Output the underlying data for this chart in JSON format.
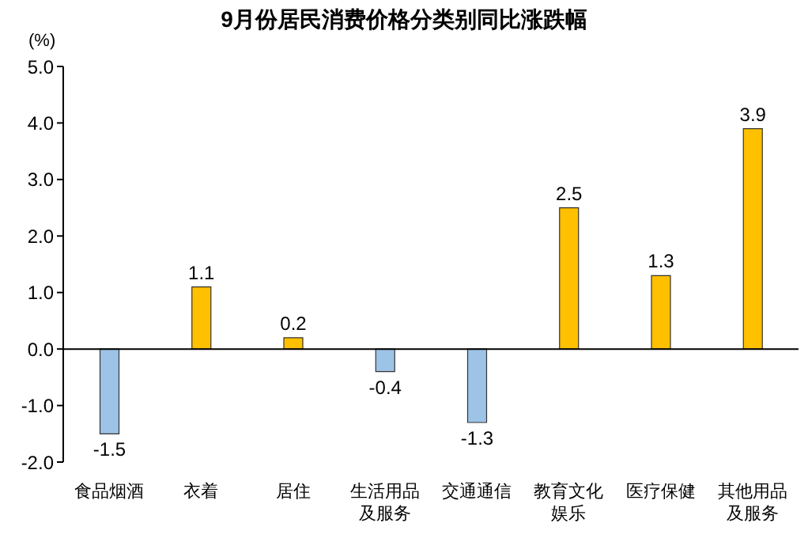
{
  "chart_data": {
    "type": "bar",
    "title": "9月份居民消费价格分类别同比涨跌幅",
    "ylabel": "(%)",
    "categories": [
      "食品烟酒",
      "衣着",
      "居住",
      "生活用品及服务",
      "交通通信",
      "教育文化娱乐",
      "医疗保健",
      "其他用品及服务"
    ],
    "values": [
      -1.5,
      1.1,
      0.2,
      -0.4,
      -1.3,
      2.5,
      1.3,
      3.9
    ],
    "colors": [
      "#9dc3e6",
      "#ffc000",
      "#ffc000",
      "#9dc3e6",
      "#9dc3e6",
      "#ffc000",
      "#ffc000",
      "#ffc000"
    ],
    "ylim": [
      -2,
      5
    ],
    "yticks": [
      {
        "value": -2,
        "label": "-2.0"
      },
      {
        "value": -1,
        "label": "-1.0"
      },
      {
        "value": 0,
        "label": "0.0"
      },
      {
        "value": 1,
        "label": "1.0"
      },
      {
        "value": 2,
        "label": "2.0"
      },
      {
        "value": 3,
        "label": "3.0"
      },
      {
        "value": 4,
        "label": "4.0"
      },
      {
        "value": 5,
        "label": "5.0"
      }
    ],
    "data_labels": true
  }
}
